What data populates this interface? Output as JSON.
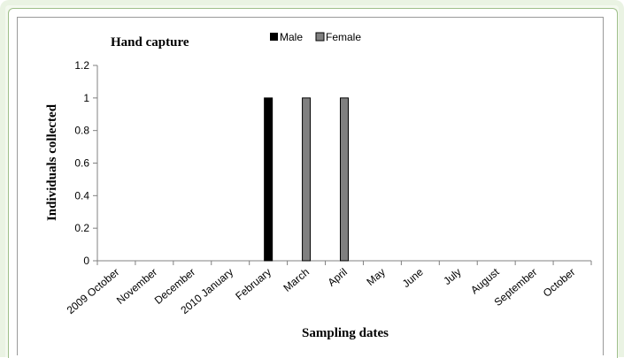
{
  "chart_data": {
    "type": "bar",
    "title": "Hand capture",
    "xlabel": "Sampling dates",
    "ylabel": "Individuals collected",
    "ylim": [
      0,
      1.2
    ],
    "yticks": [
      "0",
      "0.2",
      "0.4",
      "0.6",
      "0.8",
      "1",
      "1.2"
    ],
    "categories": [
      "2009 October",
      "November",
      "December",
      "2010 January",
      "February",
      "March",
      "April",
      "May",
      "June",
      "July",
      "August",
      "September",
      "October"
    ],
    "series": [
      {
        "name": "Male",
        "color": "#000000",
        "values": [
          0,
          0,
          0,
          0,
          1,
          0,
          0,
          0,
          0,
          0,
          0,
          0,
          0
        ]
      },
      {
        "name": "Female",
        "color": "#808080",
        "values": [
          0,
          0,
          0,
          0,
          0,
          1,
          1,
          0,
          0,
          0,
          0,
          0,
          0
        ]
      }
    ],
    "legend_position": "top-center",
    "grid": false
  }
}
